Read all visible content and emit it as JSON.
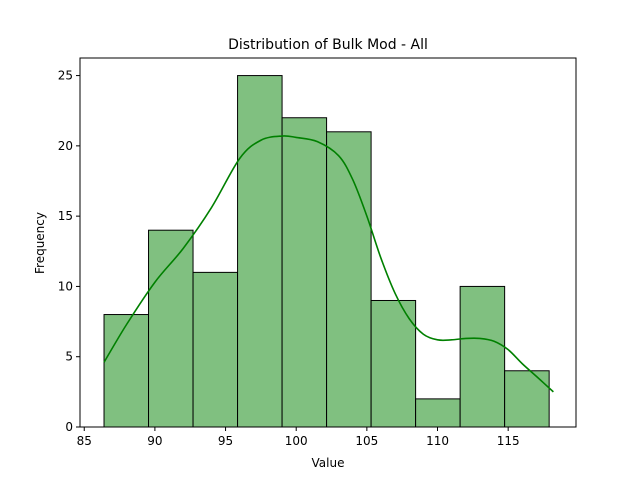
{
  "chart_data": {
    "type": "bar",
    "title": "Distribution of Bulk Mod - All",
    "xlabel": "Value",
    "ylabel": "Frequency",
    "xlim": [
      84.7,
      119.8
    ],
    "ylim": [
      0,
      26.25
    ],
    "xticks": [
      85,
      90,
      95,
      100,
      105,
      110,
      115
    ],
    "yticks": [
      0,
      5,
      10,
      15,
      20,
      25
    ],
    "grid": false,
    "bins": [
      {
        "x0": 86.4,
        "x1": 89.55,
        "count": 8
      },
      {
        "x0": 89.55,
        "x1": 92.7,
        "count": 14
      },
      {
        "x0": 92.7,
        "x1": 95.85,
        "count": 11
      },
      {
        "x0": 95.85,
        "x1": 99.0,
        "count": 25
      },
      {
        "x0": 99.0,
        "x1": 102.15,
        "count": 22
      },
      {
        "x0": 102.15,
        "x1": 105.3,
        "count": 21
      },
      {
        "x0": 105.3,
        "x1": 108.45,
        "count": 9
      },
      {
        "x0": 108.45,
        "x1": 111.6,
        "count": 2
      },
      {
        "x0": 111.6,
        "x1": 114.75,
        "count": 10
      },
      {
        "x0": 114.75,
        "x1": 117.9,
        "count": 4
      }
    ],
    "kde": {
      "x": [
        86.4,
        88,
        90,
        92,
        94,
        96,
        97.5,
        99,
        100,
        101.5,
        103,
        104,
        105,
        106,
        107,
        108,
        109,
        110,
        111,
        112,
        113,
        114,
        115,
        116,
        117,
        118.2
      ],
      "y": [
        4.6,
        7.3,
        10.3,
        12.7,
        15.6,
        19.1,
        20.4,
        20.7,
        20.6,
        20.3,
        19.3,
        17.6,
        15.0,
        12.0,
        9.5,
        7.7,
        6.6,
        6.2,
        6.2,
        6.3,
        6.3,
        6.1,
        5.5,
        4.5,
        3.6,
        2.5
      ]
    },
    "colors": {
      "bar_fill": "#80c080",
      "bar_edge": "#000000",
      "kde_line": "#008000"
    }
  }
}
